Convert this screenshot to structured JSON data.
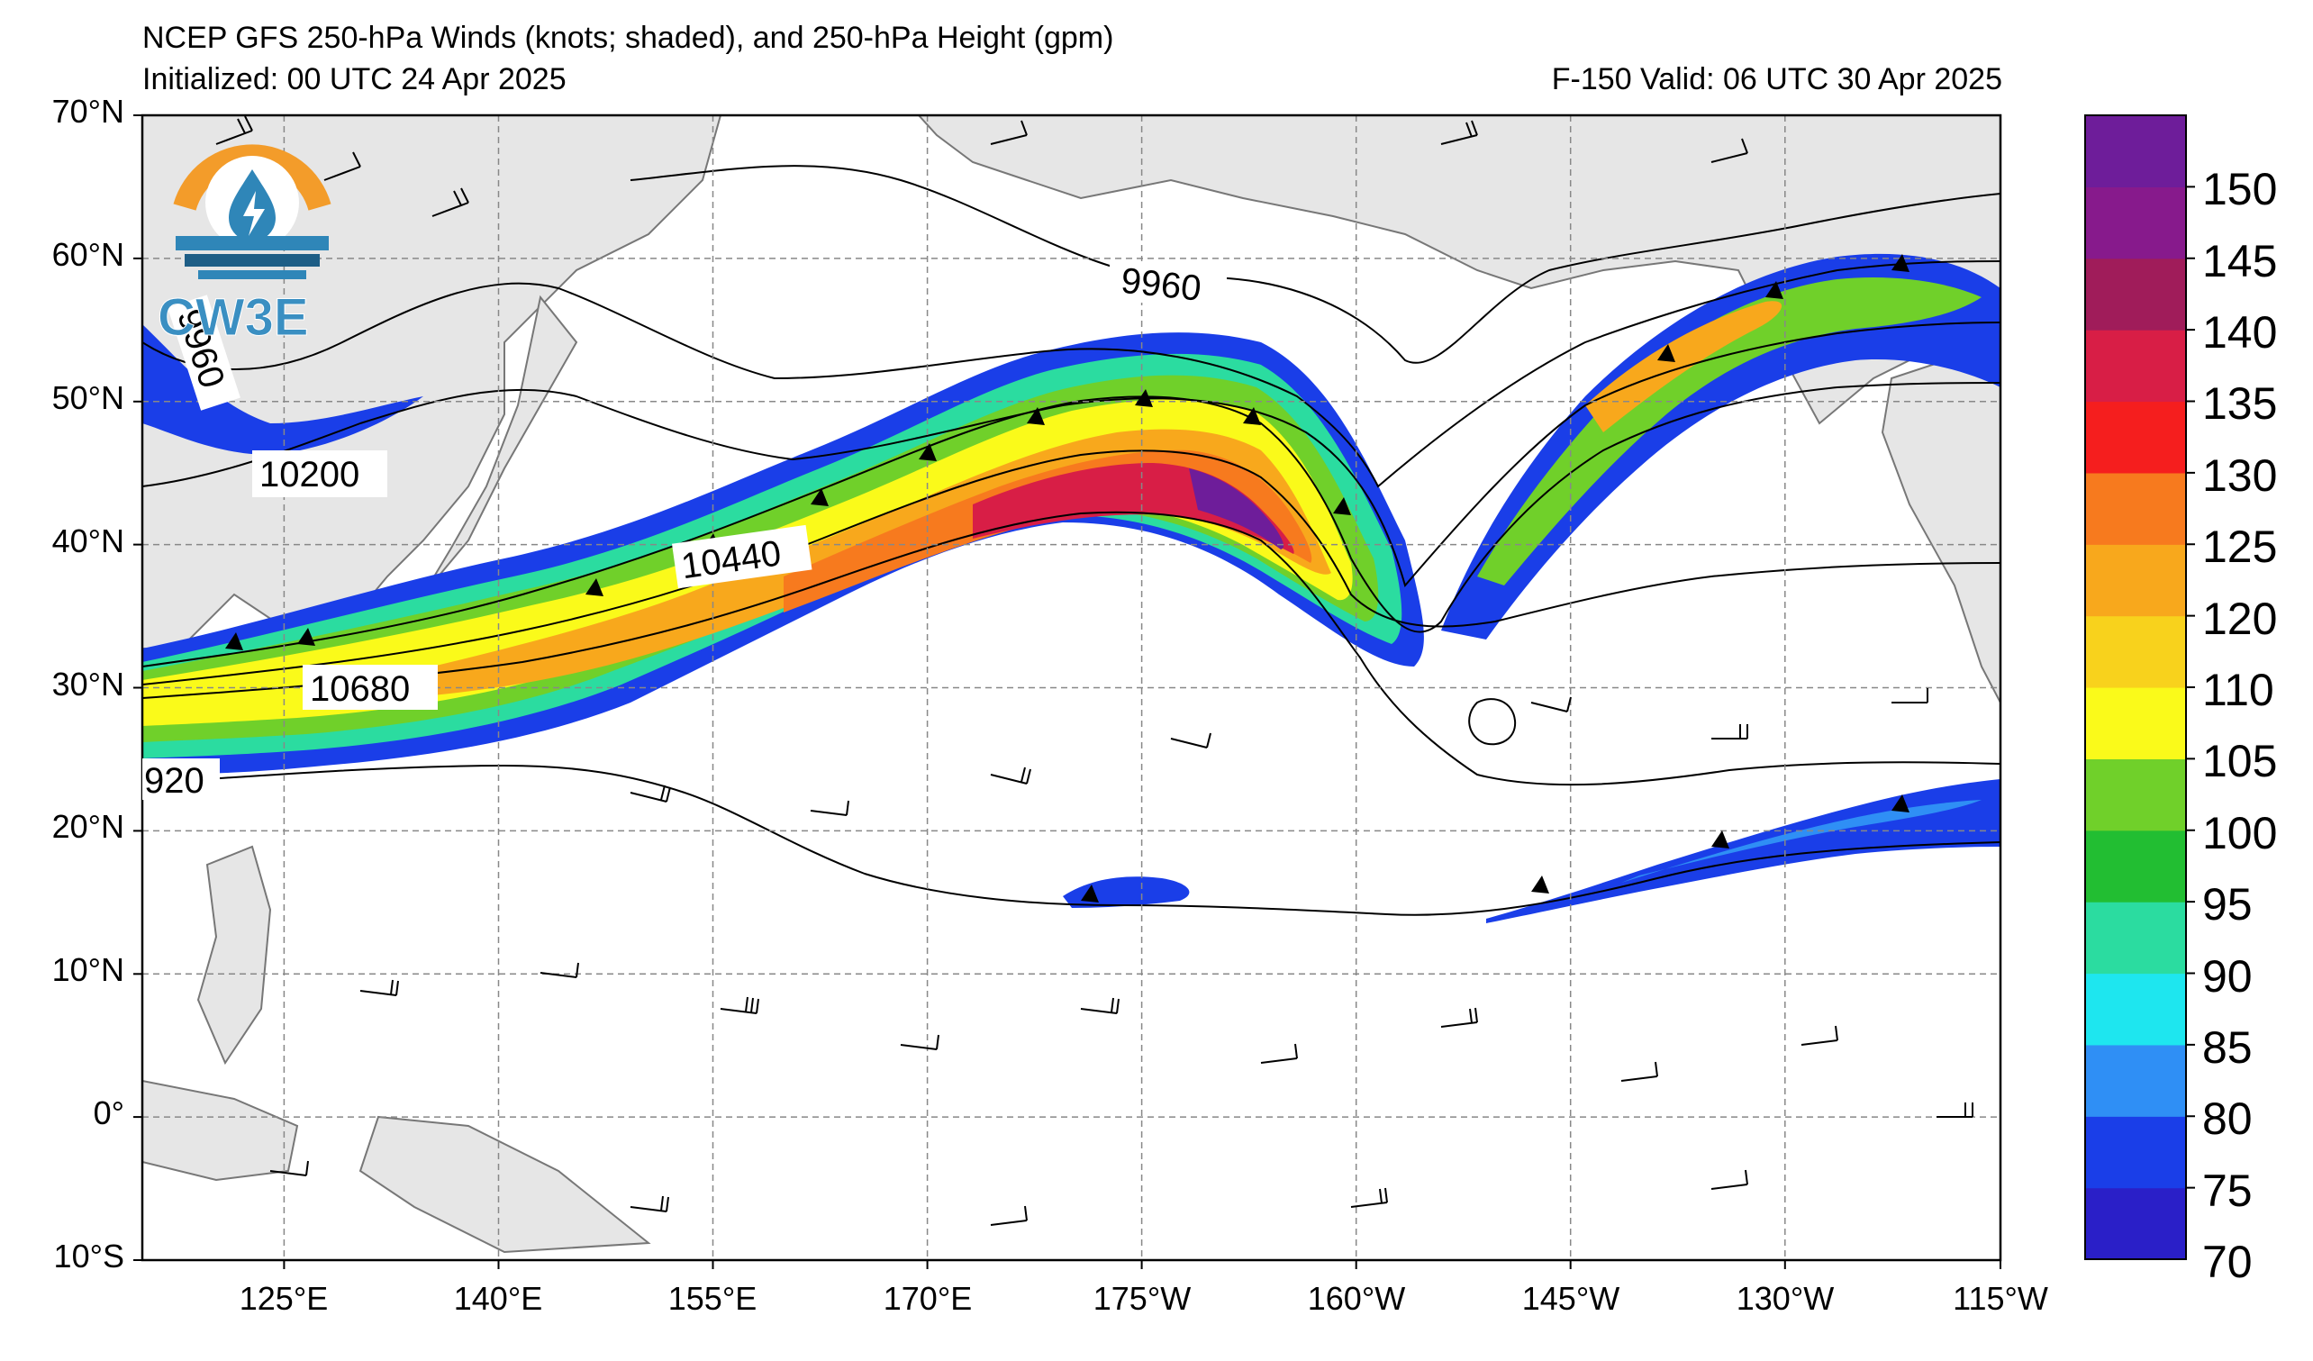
{
  "title": {
    "line1": "NCEP GFS 250-hPa Winds (knots; shaded), and 250-hPa Height (gpm)",
    "initialized": "Initialized: 00 UTC 24 Apr 2025",
    "valid": "F-150  Valid: 06 UTC 30 Apr 2025"
  },
  "axes": {
    "lat_labels": [
      "70°N",
      "60°N",
      "50°N",
      "40°N",
      "30°N",
      "20°N",
      "10°N",
      "0°",
      "10°S"
    ],
    "lon_labels": [
      "125°E",
      "140°E",
      "155°E",
      "170°E",
      "175°W",
      "160°W",
      "145°W",
      "130°W",
      "115°W"
    ],
    "lat_range": [
      -10,
      70
    ],
    "lon_range_deg_east": [
      115,
      245
    ]
  },
  "colorbar": {
    "labels": [
      "150",
      "145",
      "140",
      "135",
      "130",
      "125",
      "120",
      "110",
      "105",
      "100",
      "95",
      "90",
      "85",
      "80",
      "75",
      "70"
    ],
    "colors": [
      "#2a1fc8",
      "#1a3ee8",
      "#2f8ff5",
      "#1ee6ef",
      "#2bdca0",
      "#22be32",
      "#70d02a",
      "#fafa1a",
      "#f8d21c",
      "#f8a81c",
      "#f77a1e",
      "#f51e1e",
      "#d81e46",
      "#a01c5a",
      "#871a8c",
      "#6e1d9a"
    ]
  },
  "contour_labels": {
    "c9960a": "9960",
    "c9960b": "9960",
    "c10200": "10200",
    "c10440": "10440",
    "c10680": "10680",
    "c10920": "920"
  },
  "logo": {
    "text": "CW3E",
    "colors": {
      "orange": "#f39c2a",
      "blue": "#2f86b8",
      "dark_blue": "#1e5e86"
    }
  },
  "map_colors": {
    "land": "#e6e6e6",
    "coast": "#777777",
    "grid": "#888888"
  }
}
